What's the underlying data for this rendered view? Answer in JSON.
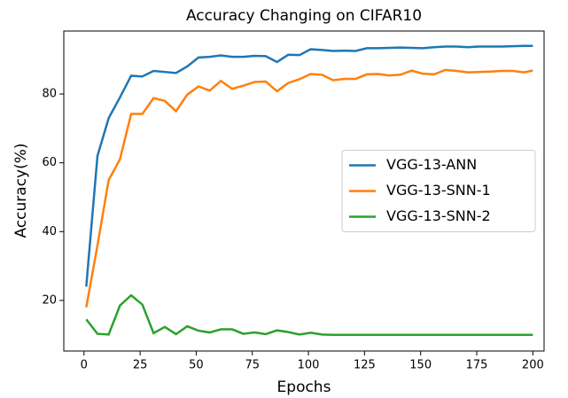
{
  "chart_data": {
    "type": "line",
    "title": "Accuracy Changing on CIFAR10",
    "xlabel": "Epochs",
    "ylabel": "Accuracy(%)",
    "x": [
      1,
      6,
      11,
      16,
      21,
      26,
      31,
      36,
      41,
      46,
      51,
      56,
      61,
      66,
      71,
      76,
      81,
      86,
      91,
      96,
      101,
      106,
      111,
      116,
      121,
      126,
      131,
      136,
      141,
      146,
      151,
      156,
      161,
      166,
      171,
      176,
      181,
      186,
      191,
      196,
      200
    ],
    "series": [
      {
        "name": "VGG-13-ANN",
        "color": "#1f77b4",
        "values": [
          24,
          62,
          73,
          79,
          85.3,
          85.1,
          86.7,
          86.4,
          86.1,
          88,
          90.6,
          90.8,
          91.2,
          90.8,
          90.8,
          91.1,
          91,
          89.3,
          91.4,
          91.3,
          93,
          92.8,
          92.5,
          92.6,
          92.5,
          93.3,
          93.3,
          93.4,
          93.5,
          93.4,
          93.3,
          93.6,
          93.8,
          93.8,
          93.6,
          93.8,
          93.8,
          93.8,
          93.9,
          94,
          94
        ]
      },
      {
        "name": "VGG-13-SNN-1",
        "color": "#ff7f0e",
        "values": [
          18,
          36,
          55,
          61,
          74.2,
          74.2,
          78.8,
          78,
          75,
          79.8,
          82.2,
          81,
          83.8,
          81.5,
          82.4,
          83.5,
          83.6,
          80.8,
          83.2,
          84.3,
          85.8,
          85.6,
          84,
          84.4,
          84.4,
          85.7,
          85.8,
          85.4,
          85.6,
          86.8,
          85.9,
          85.7,
          87,
          86.7,
          86.3,
          86.4,
          86.5,
          86.7,
          86.7,
          86.3,
          86.8
        ]
      },
      {
        "name": "VGG-13-SNN-2",
        "color": "#2ca02c",
        "values": [
          14.5,
          10.3,
          10.1,
          18.5,
          21.5,
          18.8,
          10.5,
          12.3,
          10.2,
          12.5,
          11.2,
          10.7,
          11.6,
          11.6,
          10.3,
          10.7,
          10.2,
          11.3,
          10.8,
          10.1,
          10.6,
          10.1,
          10,
          10,
          10,
          10,
          10,
          10,
          10,
          10,
          10,
          10,
          10,
          10,
          10,
          10,
          10,
          10,
          10,
          10,
          10
        ]
      }
    ],
    "xlim": [
      -9,
      205
    ],
    "ylim": [
      5.3,
      98.3
    ],
    "xticks": [
      0,
      25,
      50,
      75,
      100,
      125,
      150,
      175,
      200
    ],
    "yticks": [
      20,
      40,
      60,
      80
    ],
    "legend": "center right"
  }
}
